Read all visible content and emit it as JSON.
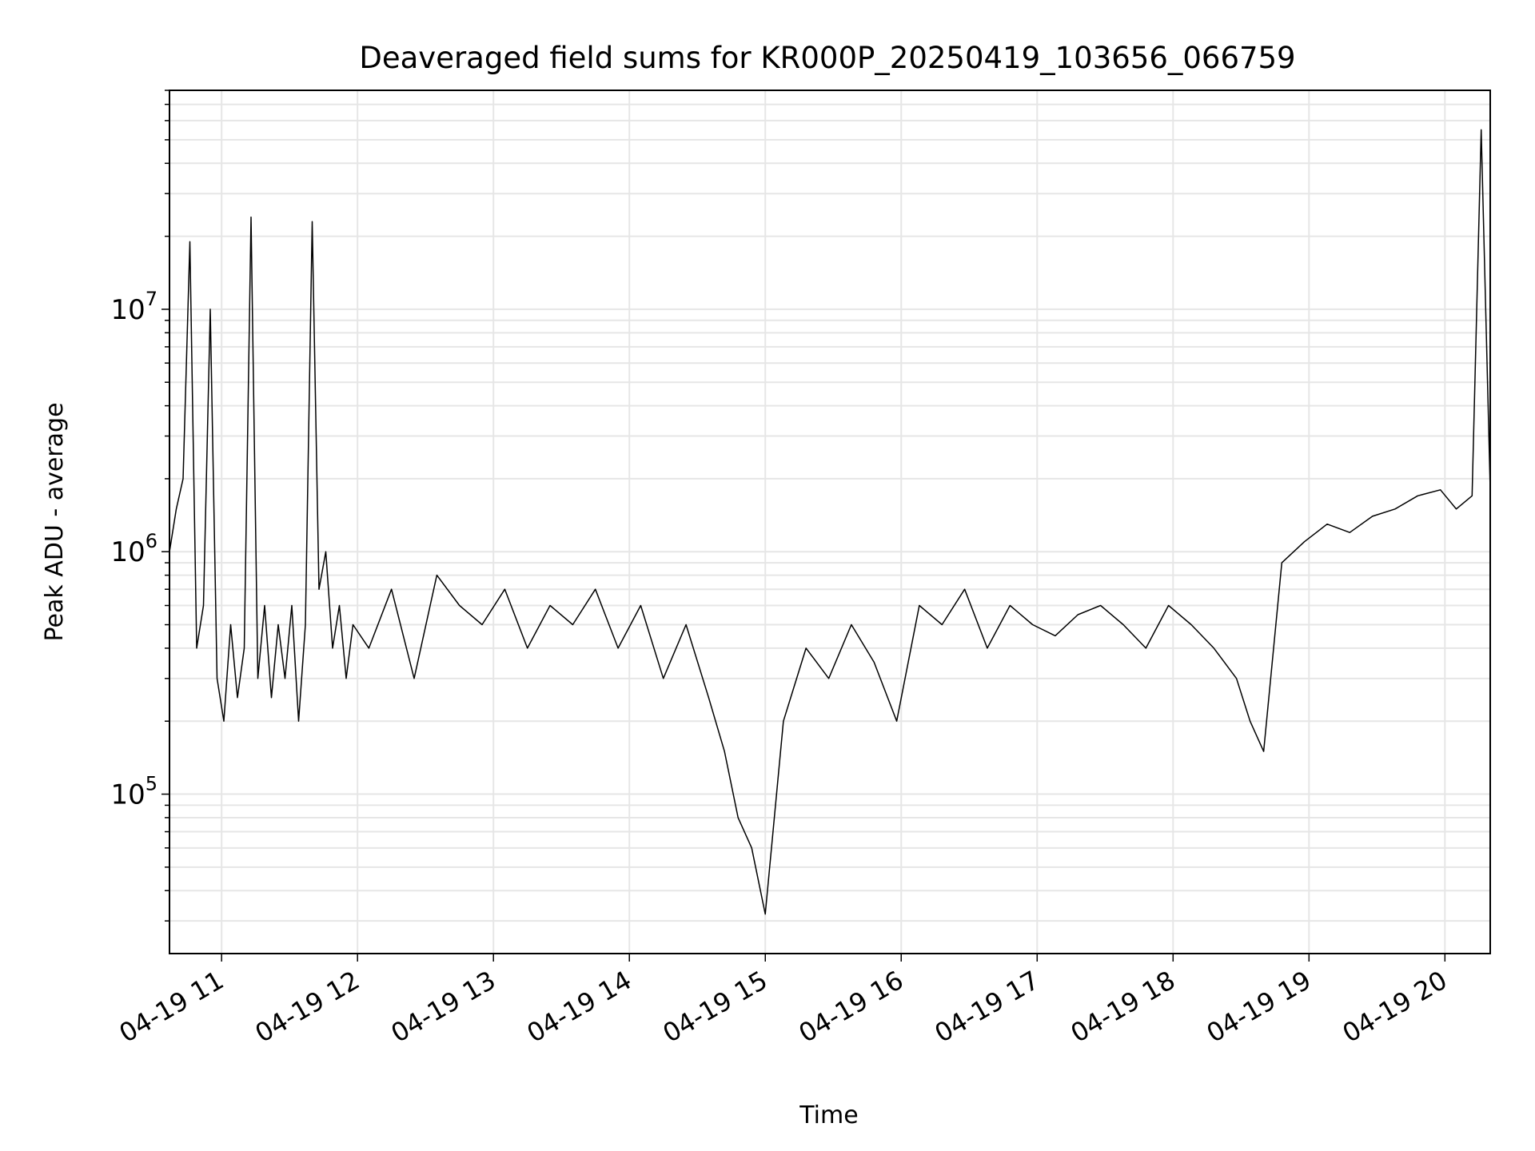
{
  "chart_data": {
    "type": "line",
    "title": "Deaveraged field sums for KR000P_20250419_103656_066759",
    "xlabel": "Time",
    "ylabel": "Peak ADU - average",
    "x_tick_labels": [
      "04-19 11",
      "04-19 12",
      "04-19 13",
      "04-19 14",
      "04-19 15",
      "04-19 16",
      "04-19 17",
      "04-19 18",
      "04-19 19",
      "04-19 20"
    ],
    "y_tick_labels": [
      {
        "base": "10",
        "exp": "5",
        "value": 100000
      },
      {
        "base": "10",
        "exp": "6",
        "value": 1000000
      },
      {
        "base": "10",
        "exp": "7",
        "value": 10000000
      }
    ],
    "x_range": [
      "04-19 10:37",
      "04-19 20:20"
    ],
    "y_scale": "log",
    "ylim": [
      22000,
      80000000
    ],
    "grid": true,
    "line_color": "#000000",
    "series": [
      {
        "x": [
          "04-19 10:37",
          "04-19 10:40",
          "04-19 10:43",
          "04-19 10:46",
          "04-19 10:49",
          "04-19 10:52",
          "04-19 10:55",
          "04-19 10:58",
          "04-19 11:01",
          "04-19 11:04",
          "04-19 11:07",
          "04-19 11:10",
          "04-19 11:13",
          "04-19 11:16",
          "04-19 11:19",
          "04-19 11:22",
          "04-19 11:25",
          "04-19 11:28",
          "04-19 11:31",
          "04-19 11:34",
          "04-19 11:37",
          "04-19 11:40",
          "04-19 11:43",
          "04-19 11:46",
          "04-19 11:49",
          "04-19 11:52",
          "04-19 11:55",
          "04-19 11:58",
          "04-19 12:05",
          "04-19 12:15",
          "04-19 12:25",
          "04-19 12:35",
          "04-19 12:45",
          "04-19 12:55",
          "04-19 13:05",
          "04-19 13:15",
          "04-19 13:25",
          "04-19 13:35",
          "04-19 13:45",
          "04-19 13:55",
          "04-19 14:05",
          "04-19 14:15",
          "04-19 14:25",
          "04-19 14:35",
          "04-19 14:42",
          "04-19 14:48",
          "04-19 14:54",
          "04-19 15:00",
          "04-19 15:08",
          "04-19 15:18",
          "04-19 15:28",
          "04-19 15:38",
          "04-19 15:48",
          "04-19 15:58",
          "04-19 16:08",
          "04-19 16:18",
          "04-19 16:28",
          "04-19 16:38",
          "04-19 16:48",
          "04-19 16:58",
          "04-19 17:08",
          "04-19 17:18",
          "04-19 17:28",
          "04-19 17:38",
          "04-19 17:48",
          "04-19 17:58",
          "04-19 18:08",
          "04-19 18:18",
          "04-19 18:28",
          "04-19 18:34",
          "04-19 18:40",
          "04-19 18:48",
          "04-19 18:58",
          "04-19 19:08",
          "04-19 19:18",
          "04-19 19:28",
          "04-19 19:38",
          "04-19 19:48",
          "04-19 19:58",
          "04-19 20:05",
          "04-19 20:12",
          "04-19 20:16",
          "04-19 20:20"
        ],
        "y": [
          1000000,
          1500000,
          2000000,
          19000000,
          400000,
          600000,
          10000000,
          300000,
          200000,
          500000,
          250000,
          400000,
          24000000,
          300000,
          600000,
          250000,
          500000,
          300000,
          600000,
          200000,
          500000,
          23000000,
          700000,
          1000000,
          400000,
          600000,
          300000,
          500000,
          400000,
          700000,
          300000,
          800000,
          600000,
          500000,
          700000,
          400000,
          600000,
          500000,
          700000,
          400000,
          600000,
          300000,
          500000,
          250000,
          150000,
          80000,
          60000,
          32000,
          200000,
          400000,
          300000,
          500000,
          350000,
          200000,
          600000,
          500000,
          700000,
          400000,
          600000,
          500000,
          450000,
          550000,
          600000,
          500000,
          400000,
          600000,
          500000,
          400000,
          300000,
          200000,
          150000,
          900000,
          1100000,
          1300000,
          1200000,
          1400000,
          1500000,
          1700000,
          1800000,
          1500000,
          1700000,
          55000000,
          1800000
        ]
      }
    ]
  }
}
